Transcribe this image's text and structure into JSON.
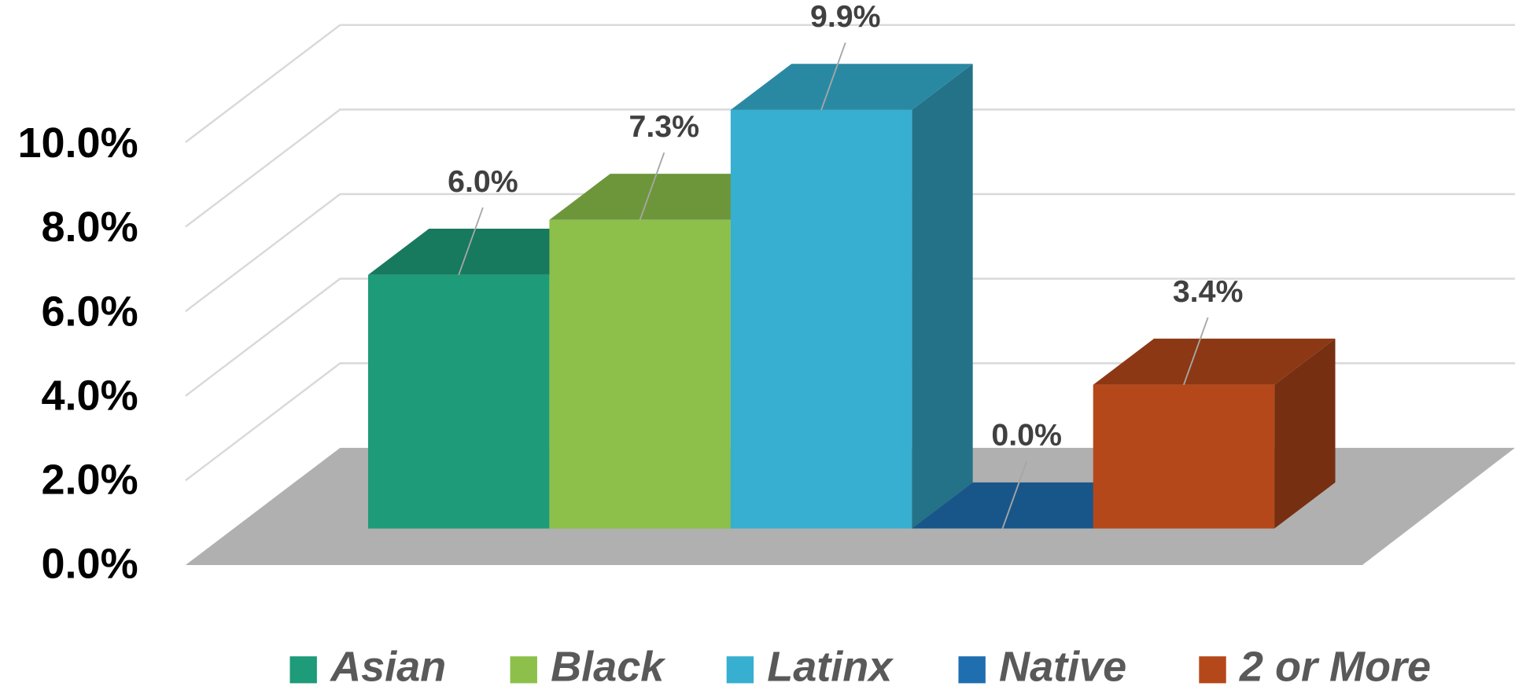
{
  "chart_data": {
    "type": "bar3d",
    "series": [
      {
        "name": "Asian",
        "color": "#1e9b78",
        "values": [
          6.0
        ],
        "value_labels": [
          "6.0%"
        ]
      },
      {
        "name": "Black",
        "color": "#8cc04a",
        "values": [
          7.3
        ],
        "value_labels": [
          "7.3%"
        ]
      },
      {
        "name": "Latinx",
        "color": "#36afd0",
        "values": [
          9.9
        ],
        "value_labels": [
          "9.9%"
        ]
      },
      {
        "name": "Native",
        "color": "#1f6eb0",
        "values": [
          0.0
        ],
        "value_labels": [
          "0.0%"
        ]
      },
      {
        "name": "2 or More",
        "color": "#b5481a",
        "values": [
          3.4
        ],
        "value_labels": [
          "3.4%"
        ]
      }
    ],
    "ylim": [
      0,
      12
    ],
    "yticks": [
      {
        "value": 0,
        "label": "0.0%"
      },
      {
        "value": 2,
        "label": "2.0%"
      },
      {
        "value": 4,
        "label": "4.0%"
      },
      {
        "value": 6,
        "label": "6.0%"
      },
      {
        "value": 8,
        "label": "8.0%"
      },
      {
        "value": 10,
        "label": "10.0%"
      }
    ],
    "grid": true,
    "legend": "bottom"
  }
}
